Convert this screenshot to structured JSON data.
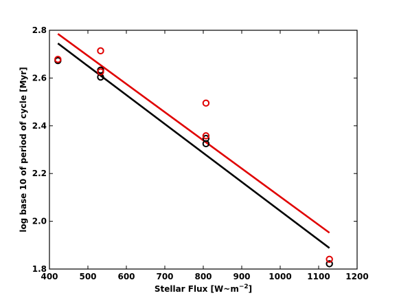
{
  "chart_data": {
    "type": "scatter",
    "title": "",
    "xlabel": "Stellar Flux [W~m",
    "xlabel_sup": "−2",
    "xlabel_tail": "]",
    "ylabel": "log base 10 of period of cycle [Myr]",
    "xlim": [
      400,
      1200
    ],
    "ylim": [
      1.8,
      2.8
    ],
    "xticks": [
      400,
      500,
      600,
      700,
      800,
      900,
      1000,
      1100,
      1200
    ],
    "yticks": [
      1.8,
      2.0,
      2.2,
      2.4,
      2.6,
      2.8
    ],
    "xtick_labels": [
      "400",
      "500",
      "600",
      "700",
      "800",
      "900",
      "1000",
      "1100",
      "1200"
    ],
    "ytick_labels": [
      "1.8",
      "2.0",
      "2.2",
      "2.4",
      "2.6",
      "2.8"
    ],
    "grid": false,
    "series": [
      {
        "color": "#000000",
        "points": [
          {
            "x": 422,
            "y": 2.673
          },
          {
            "x": 533,
            "y": 2.633
          },
          {
            "x": 533,
            "y": 2.604
          },
          {
            "x": 807,
            "y": 2.347
          },
          {
            "x": 807,
            "y": 2.325
          },
          {
            "x": 1128,
            "y": 1.822
          }
        ],
        "fit": [
          {
            "x": 422,
            "y": 2.745
          },
          {
            "x": 1128,
            "y": 1.888
          }
        ]
      },
      {
        "color": "#e00000",
        "points": [
          {
            "x": 422,
            "y": 2.678
          },
          {
            "x": 533,
            "y": 2.714
          },
          {
            "x": 533,
            "y": 2.626
          },
          {
            "x": 807,
            "y": 2.495
          },
          {
            "x": 807,
            "y": 2.358
          },
          {
            "x": 1128,
            "y": 1.841
          }
        ],
        "fit": [
          {
            "x": 422,
            "y": 2.785
          },
          {
            "x": 1128,
            "y": 1.952
          }
        ]
      }
    ]
  }
}
